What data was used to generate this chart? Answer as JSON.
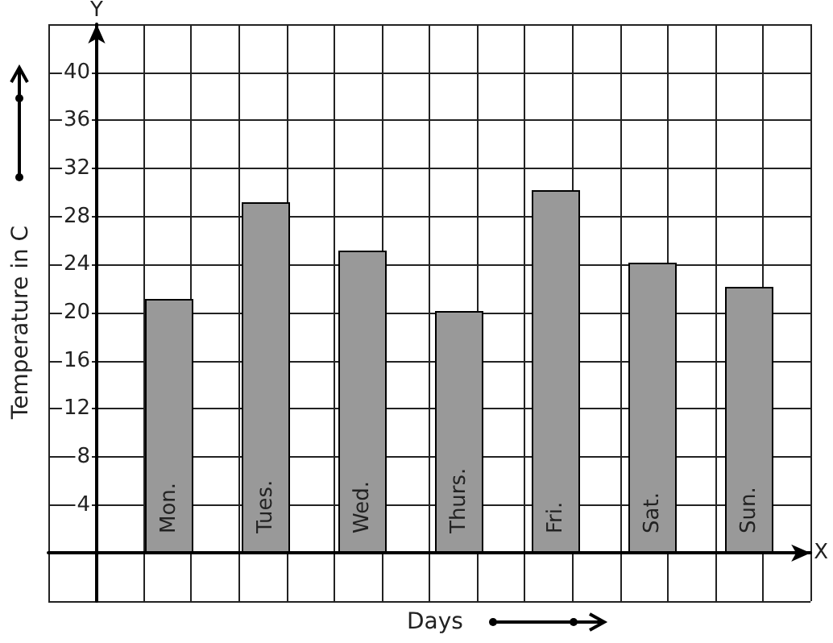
{
  "chart_data": {
    "type": "bar",
    "xlabel": "Days",
    "ylabel": "Temperature in C",
    "categories": [
      "Mon.",
      "Tues.",
      "Wed.",
      "Thurs.",
      "Fri.",
      "Sat.",
      "Sun."
    ],
    "values": [
      21,
      29,
      25,
      20,
      30,
      24,
      22
    ],
    "color": "#999999",
    "ylim": [
      -4,
      44
    ],
    "yticks": [
      4,
      8,
      12,
      16,
      20,
      24,
      28,
      32,
      36,
      40
    ],
    "annotations": [
      "Y",
      "X"
    ],
    "grid": true
  }
}
